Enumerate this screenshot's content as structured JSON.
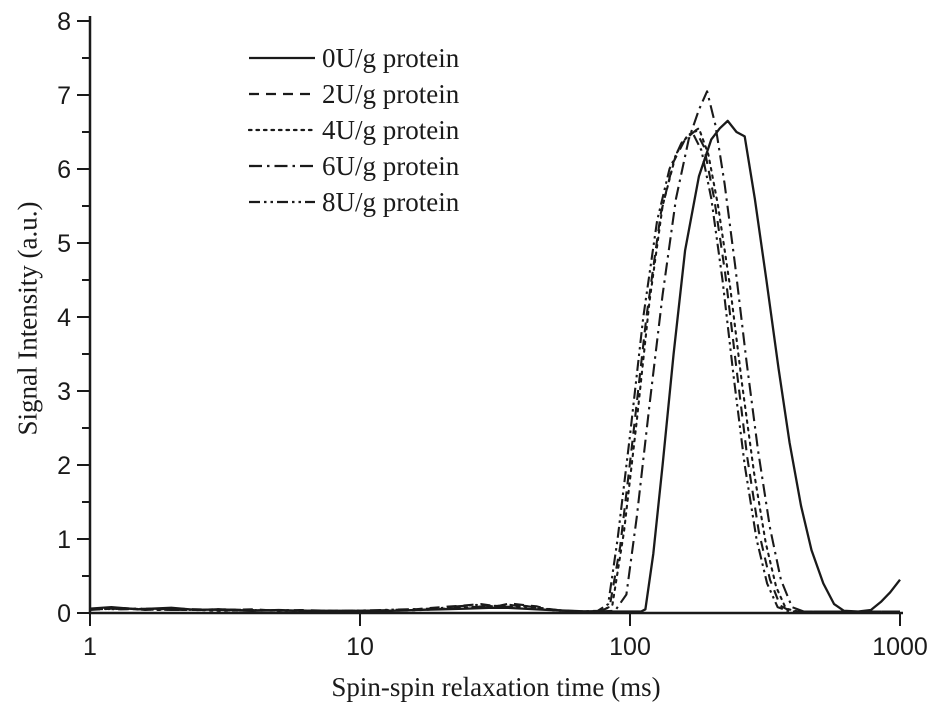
{
  "figure": {
    "background": "#ffffff",
    "line_color": "#1a1a1a"
  },
  "chart_data": {
    "type": "line",
    "title": "",
    "xlabel": "Spin-spin relaxation time (ms)",
    "ylabel": "Signal Intensity (a.u.)",
    "x_scale": "log",
    "xlim": [
      1,
      1000
    ],
    "ylim": [
      0,
      8
    ],
    "x_ticks": [
      1,
      10,
      100,
      1000
    ],
    "y_ticks": [
      0,
      1,
      2,
      3,
      4,
      5,
      6,
      7,
      8
    ],
    "y_minor_tick_step": 0.5,
    "grid": "off",
    "legend_position": "top-left-inside",
    "series": [
      {
        "name": "0U/g protein",
        "dash": "solid",
        "peak": {
          "x_ms": 230,
          "value": 6.65
        },
        "points": [
          [
            1,
            0.06
          ],
          [
            1.2,
            0.08
          ],
          [
            1.5,
            0.05
          ],
          [
            2,
            0.07
          ],
          [
            2.5,
            0.04
          ],
          [
            3,
            0.05
          ],
          [
            4,
            0.03
          ],
          [
            5,
            0.04
          ],
          [
            6,
            0.03
          ],
          [
            8,
            0.03
          ],
          [
            10,
            0.03
          ],
          [
            13,
            0.03
          ],
          [
            16,
            0.04
          ],
          [
            20,
            0.05
          ],
          [
            25,
            0.06
          ],
          [
            30,
            0.07
          ],
          [
            35,
            0.07
          ],
          [
            40,
            0.06
          ],
          [
            50,
            0.04
          ],
          [
            60,
            0.03
          ],
          [
            70,
            0.02
          ],
          [
            85,
            0.02
          ],
          [
            100,
            0.02
          ],
          [
            110,
            0.02
          ],
          [
            114,
            0.05
          ],
          [
            122,
            0.8
          ],
          [
            132,
            2.0
          ],
          [
            145,
            3.5
          ],
          [
            160,
            4.9
          ],
          [
            180,
            5.9
          ],
          [
            200,
            6.4
          ],
          [
            215,
            6.55
          ],
          [
            230,
            6.65
          ],
          [
            248,
            6.5
          ],
          [
            266,
            6.44
          ],
          [
            290,
            5.6
          ],
          [
            320,
            4.5
          ],
          [
            355,
            3.3
          ],
          [
            390,
            2.3
          ],
          [
            430,
            1.45
          ],
          [
            470,
            0.85
          ],
          [
            520,
            0.4
          ],
          [
            570,
            0.12
          ],
          [
            620,
            0.03
          ],
          [
            700,
            0.02
          ],
          [
            780,
            0.04
          ],
          [
            850,
            0.15
          ],
          [
            920,
            0.28
          ],
          [
            1000,
            0.45
          ]
        ]
      },
      {
        "name": "2U/g protein",
        "dash": "dashed",
        "peak": {
          "x_ms": 175,
          "value": 6.52
        },
        "points": [
          [
            1,
            0.04
          ],
          [
            1.3,
            0.07
          ],
          [
            1.6,
            0.04
          ],
          [
            2,
            0.06
          ],
          [
            2.5,
            0.05
          ],
          [
            3,
            0.04
          ],
          [
            4,
            0.05
          ],
          [
            5,
            0.03
          ],
          [
            6,
            0.04
          ],
          [
            8,
            0.03
          ],
          [
            10,
            0.03
          ],
          [
            13,
            0.04
          ],
          [
            16,
            0.05
          ],
          [
            20,
            0.08
          ],
          [
            24,
            0.1
          ],
          [
            28,
            0.12
          ],
          [
            32,
            0.09
          ],
          [
            36,
            0.13
          ],
          [
            40,
            0.11
          ],
          [
            45,
            0.09
          ],
          [
            50,
            0.05
          ],
          [
            58,
            0.03
          ],
          [
            68,
            0.02
          ],
          [
            78,
            0.03
          ],
          [
            84,
            0.08
          ],
          [
            92,
            0.9
          ],
          [
            102,
            2.3
          ],
          [
            115,
            4.0
          ],
          [
            130,
            5.4
          ],
          [
            145,
            6.1
          ],
          [
            160,
            6.4
          ],
          [
            175,
            6.52
          ],
          [
            188,
            6.3
          ],
          [
            205,
            5.6
          ],
          [
            225,
            4.6
          ],
          [
            248,
            3.3
          ],
          [
            272,
            2.1
          ],
          [
            300,
            1.1
          ],
          [
            330,
            0.45
          ],
          [
            360,
            0.1
          ],
          [
            395,
            0.02
          ],
          [
            500,
            0.02
          ],
          [
            700,
            0.02
          ],
          [
            1000,
            0.02
          ]
        ]
      },
      {
        "name": "4U/g protein",
        "dash": "dotted",
        "peak": {
          "x_ms": 180,
          "value": 6.55
        },
        "points": [
          [
            1,
            0.05
          ],
          [
            1.4,
            0.06
          ],
          [
            1.8,
            0.04
          ],
          [
            2.2,
            0.05
          ],
          [
            3,
            0.03
          ],
          [
            4,
            0.04
          ],
          [
            5,
            0.03
          ],
          [
            6.5,
            0.03
          ],
          [
            8,
            0.02
          ],
          [
            10,
            0.03
          ],
          [
            13,
            0.03
          ],
          [
            17,
            0.04
          ],
          [
            21,
            0.06
          ],
          [
            26,
            0.08
          ],
          [
            31,
            0.1
          ],
          [
            36,
            0.08
          ],
          [
            42,
            0.09
          ],
          [
            48,
            0.06
          ],
          [
            56,
            0.03
          ],
          [
            66,
            0.02
          ],
          [
            78,
            0.03
          ],
          [
            86,
            0.1
          ],
          [
            95,
            1.1
          ],
          [
            106,
            2.6
          ],
          [
            118,
            4.2
          ],
          [
            132,
            5.5
          ],
          [
            148,
            6.2
          ],
          [
            163,
            6.45
          ],
          [
            180,
            6.55
          ],
          [
            195,
            6.2
          ],
          [
            212,
            5.5
          ],
          [
            235,
            4.4
          ],
          [
            260,
            3.1
          ],
          [
            288,
            1.9
          ],
          [
            318,
            0.95
          ],
          [
            348,
            0.35
          ],
          [
            378,
            0.06
          ],
          [
            420,
            0.02
          ],
          [
            600,
            0.02
          ],
          [
            1000,
            0.02
          ]
        ]
      },
      {
        "name": "6U/g protein",
        "dash": "dashdot",
        "peak": {
          "x_ms": 193,
          "value": 7.05
        },
        "points": [
          [
            1,
            0.05
          ],
          [
            1.5,
            0.06
          ],
          [
            2,
            0.04
          ],
          [
            3,
            0.04
          ],
          [
            4,
            0.03
          ],
          [
            5,
            0.04
          ],
          [
            7,
            0.03
          ],
          [
            9,
            0.02
          ],
          [
            12,
            0.03
          ],
          [
            15,
            0.04
          ],
          [
            19,
            0.05
          ],
          [
            24,
            0.07
          ],
          [
            29,
            0.09
          ],
          [
            34,
            0.08
          ],
          [
            40,
            0.1
          ],
          [
            46,
            0.07
          ],
          [
            54,
            0.04
          ],
          [
            64,
            0.02
          ],
          [
            76,
            0.02
          ],
          [
            88,
            0.03
          ],
          [
            97,
            0.25
          ],
          [
            106,
            1.3
          ],
          [
            118,
            2.8
          ],
          [
            132,
            4.3
          ],
          [
            148,
            5.6
          ],
          [
            165,
            6.4
          ],
          [
            180,
            6.8
          ],
          [
            193,
            7.05
          ],
          [
            207,
            6.6
          ],
          [
            224,
            5.8
          ],
          [
            245,
            4.7
          ],
          [
            270,
            3.4
          ],
          [
            298,
            2.2
          ],
          [
            330,
            1.15
          ],
          [
            362,
            0.45
          ],
          [
            398,
            0.08
          ],
          [
            440,
            0.02
          ],
          [
            600,
            0.02
          ],
          [
            1000,
            0.02
          ]
        ]
      },
      {
        "name": "8U/g protein",
        "dash": "dashdotdot",
        "peak": {
          "x_ms": 170,
          "value": 6.5
        },
        "points": [
          [
            1,
            0.06
          ],
          [
            1.3,
            0.05
          ],
          [
            1.7,
            0.06
          ],
          [
            2.2,
            0.04
          ],
          [
            3,
            0.05
          ],
          [
            4,
            0.04
          ],
          [
            5.5,
            0.03
          ],
          [
            7,
            0.03
          ],
          [
            9,
            0.03
          ],
          [
            12,
            0.04
          ],
          [
            15,
            0.05
          ],
          [
            19,
            0.06
          ],
          [
            23,
            0.09
          ],
          [
            27,
            0.11
          ],
          [
            31,
            0.09
          ],
          [
            36,
            0.11
          ],
          [
            41,
            0.08
          ],
          [
            47,
            0.05
          ],
          [
            55,
            0.03
          ],
          [
            65,
            0.02
          ],
          [
            76,
            0.03
          ],
          [
            83,
            0.12
          ],
          [
            90,
            1.0
          ],
          [
            100,
            2.4
          ],
          [
            112,
            4.0
          ],
          [
            126,
            5.3
          ],
          [
            140,
            6.0
          ],
          [
            155,
            6.35
          ],
          [
            170,
            6.5
          ],
          [
            184,
            6.25
          ],
          [
            200,
            5.6
          ],
          [
            220,
            4.5
          ],
          [
            242,
            3.2
          ],
          [
            266,
            2.0
          ],
          [
            294,
            1.0
          ],
          [
            322,
            0.4
          ],
          [
            352,
            0.08
          ],
          [
            390,
            0.02
          ],
          [
            550,
            0.02
          ],
          [
            1000,
            0.02
          ]
        ]
      }
    ]
  }
}
